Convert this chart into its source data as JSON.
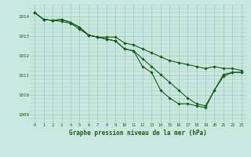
{
  "title": "Graphe pression niveau de la mer (hPa)",
  "background_color": "#c8e8e0",
  "grid_color": "#a0c8b8",
  "line_color": "#1a5c1a",
  "marker_color": "#1a5c1a",
  "x_ticks": [
    0,
    1,
    2,
    3,
    4,
    5,
    6,
    7,
    8,
    9,
    10,
    11,
    12,
    13,
    14,
    15,
    16,
    17,
    18,
    19,
    20,
    21,
    22,
    23
  ],
  "y_ticks": [
    1009,
    1010,
    1011,
    1012,
    1013,
    1014
  ],
  "ylim": [
    1008.6,
    1014.6
  ],
  "xlim": [
    -0.5,
    23.5
  ],
  "series": [
    [
      1014.2,
      1013.85,
      1013.8,
      1013.85,
      1013.7,
      1013.45,
      1013.05,
      1012.95,
      1012.85,
      1012.75,
      1012.35,
      1012.25,
      1011.45,
      1011.15,
      1010.25,
      1009.85,
      1009.55,
      1009.55,
      1009.45,
      1009.35,
      1010.25,
      1011.05,
      1011.15,
      1011.15
    ],
    [
      1014.2,
      1013.85,
      1013.8,
      1013.85,
      1013.7,
      1013.45,
      1013.05,
      1012.95,
      1012.85,
      1012.75,
      1012.35,
      1012.25,
      1011.85,
      1011.45,
      1011.05,
      1010.65,
      1010.25,
      1009.85,
      1009.55,
      1009.45,
      1010.25,
      1010.95,
      1011.15,
      1011.15
    ],
    [
      1014.2,
      1013.85,
      1013.8,
      1013.75,
      1013.65,
      1013.35,
      1013.05,
      1012.95,
      1012.95,
      1012.95,
      1012.65,
      1012.55,
      1012.35,
      1012.15,
      1011.95,
      1011.75,
      1011.65,
      1011.55,
      1011.45,
      1011.35,
      1011.45,
      1011.35,
      1011.35,
      1011.25
    ]
  ]
}
